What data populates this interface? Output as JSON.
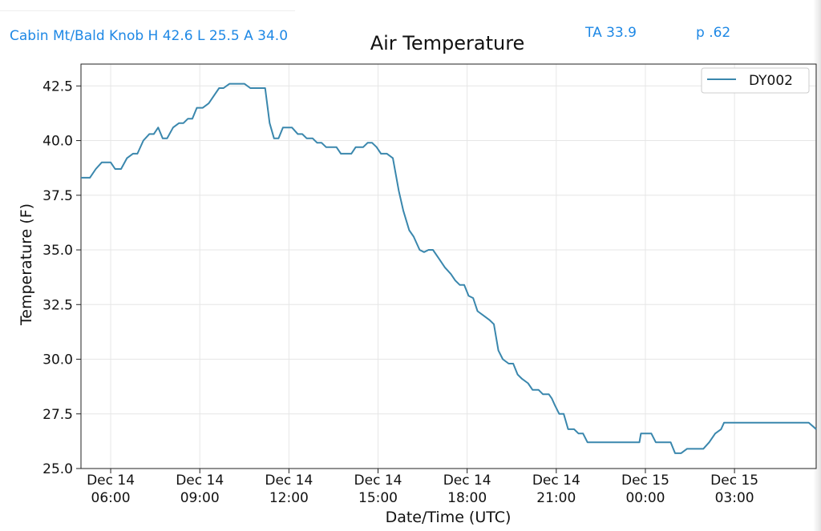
{
  "header": {
    "station_summary": "Cabin Mt/Bald Knob H 42.6 L 25.5 A 34.0",
    "ta_label": "TA 33.9",
    "p_label": "p .62"
  },
  "colors": {
    "accent_text": "#1e88e5",
    "series_line": "#3a87ad",
    "grid": "#e6e6e6"
  },
  "chart_data": {
    "type": "line",
    "title": "Air Temperature",
    "xlabel": "Date/Time (UTC)",
    "ylabel": "Temperature (F)",
    "ylim": [
      25.0,
      43.5
    ],
    "y_ticks": [
      "25.0",
      "27.5",
      "30.0",
      "32.5",
      "35.0",
      "37.5",
      "40.0",
      "42.5"
    ],
    "x_range_hours": [
      5.0,
      29.75
    ],
    "x_ticks": [
      {
        "hour": 6,
        "line1": "Dec 14",
        "line2": "06:00"
      },
      {
        "hour": 9,
        "line1": "Dec 14",
        "line2": "09:00"
      },
      {
        "hour": 12,
        "line1": "Dec 14",
        "line2": "12:00"
      },
      {
        "hour": 15,
        "line1": "Dec 14",
        "line2": "15:00"
      },
      {
        "hour": 18,
        "line1": "Dec 14",
        "line2": "18:00"
      },
      {
        "hour": 21,
        "line1": "Dec 14",
        "line2": "21:00"
      },
      {
        "hour": 24,
        "line1": "Dec 15",
        "line2": "00:00"
      },
      {
        "hour": 27,
        "line1": "Dec 15",
        "line2": "03:00"
      }
    ],
    "grid": true,
    "legend_position": "top-right",
    "series": [
      {
        "name": "DY002",
        "points": [
          [
            5.0,
            38.3
          ],
          [
            5.3,
            38.3
          ],
          [
            5.5,
            38.7
          ],
          [
            5.7,
            39.0
          ],
          [
            6.0,
            39.0
          ],
          [
            6.15,
            38.7
          ],
          [
            6.35,
            38.7
          ],
          [
            6.55,
            39.2
          ],
          [
            6.75,
            39.4
          ],
          [
            6.9,
            39.4
          ],
          [
            7.1,
            40.0
          ],
          [
            7.3,
            40.3
          ],
          [
            7.45,
            40.3
          ],
          [
            7.6,
            40.6
          ],
          [
            7.75,
            40.1
          ],
          [
            7.9,
            40.1
          ],
          [
            8.1,
            40.6
          ],
          [
            8.3,
            40.8
          ],
          [
            8.45,
            40.8
          ],
          [
            8.6,
            41.0
          ],
          [
            8.75,
            41.0
          ],
          [
            8.9,
            41.5
          ],
          [
            9.1,
            41.5
          ],
          [
            9.3,
            41.7
          ],
          [
            9.5,
            42.1
          ],
          [
            9.65,
            42.4
          ],
          [
            9.8,
            42.4
          ],
          [
            10.0,
            42.6
          ],
          [
            10.2,
            42.6
          ],
          [
            10.5,
            42.6
          ],
          [
            10.7,
            42.4
          ],
          [
            11.0,
            42.4
          ],
          [
            11.2,
            42.4
          ],
          [
            11.35,
            40.8
          ],
          [
            11.5,
            40.1
          ],
          [
            11.65,
            40.1
          ],
          [
            11.8,
            40.6
          ],
          [
            12.1,
            40.6
          ],
          [
            12.3,
            40.3
          ],
          [
            12.45,
            40.3
          ],
          [
            12.6,
            40.1
          ],
          [
            12.8,
            40.1
          ],
          [
            12.95,
            39.9
          ],
          [
            13.1,
            39.9
          ],
          [
            13.25,
            39.7
          ],
          [
            13.5,
            39.7
          ],
          [
            13.6,
            39.7
          ],
          [
            13.75,
            39.4
          ],
          [
            13.9,
            39.4
          ],
          [
            14.1,
            39.4
          ],
          [
            14.25,
            39.7
          ],
          [
            14.5,
            39.7
          ],
          [
            14.65,
            39.9
          ],
          [
            14.8,
            39.9
          ],
          [
            14.95,
            39.7
          ],
          [
            15.1,
            39.4
          ],
          [
            15.3,
            39.4
          ],
          [
            15.5,
            39.2
          ],
          [
            15.7,
            37.7
          ],
          [
            15.85,
            36.8
          ],
          [
            16.05,
            35.9
          ],
          [
            16.2,
            35.6
          ],
          [
            16.4,
            35.0
          ],
          [
            16.55,
            34.9
          ],
          [
            16.7,
            35.0
          ],
          [
            16.85,
            35.0
          ],
          [
            17.05,
            34.6
          ],
          [
            17.25,
            34.2
          ],
          [
            17.45,
            33.9
          ],
          [
            17.6,
            33.6
          ],
          [
            17.75,
            33.4
          ],
          [
            17.9,
            33.4
          ],
          [
            18.05,
            32.9
          ],
          [
            18.2,
            32.8
          ],
          [
            18.35,
            32.2
          ],
          [
            18.55,
            32.0
          ],
          [
            18.75,
            31.8
          ],
          [
            18.9,
            31.6
          ],
          [
            19.05,
            30.4
          ],
          [
            19.2,
            30.0
          ],
          [
            19.4,
            29.8
          ],
          [
            19.55,
            29.8
          ],
          [
            19.7,
            29.3
          ],
          [
            19.85,
            29.1
          ],
          [
            20.05,
            28.9
          ],
          [
            20.2,
            28.6
          ],
          [
            20.4,
            28.6
          ],
          [
            20.55,
            28.4
          ],
          [
            20.75,
            28.4
          ],
          [
            20.85,
            28.2
          ],
          [
            20.95,
            27.9
          ],
          [
            21.1,
            27.5
          ],
          [
            21.25,
            27.5
          ],
          [
            21.4,
            26.8
          ],
          [
            21.6,
            26.8
          ],
          [
            21.75,
            26.6
          ],
          [
            21.9,
            26.6
          ],
          [
            22.05,
            26.2
          ],
          [
            22.3,
            26.2
          ],
          [
            22.6,
            26.2
          ],
          [
            23.0,
            26.2
          ],
          [
            23.4,
            26.2
          ],
          [
            23.8,
            26.2
          ],
          [
            23.85,
            26.6
          ],
          [
            24.2,
            26.6
          ],
          [
            24.35,
            26.2
          ],
          [
            24.65,
            26.2
          ],
          [
            24.85,
            26.2
          ],
          [
            25.0,
            25.7
          ],
          [
            25.2,
            25.7
          ],
          [
            25.4,
            25.9
          ],
          [
            25.6,
            25.9
          ],
          [
            25.8,
            25.9
          ],
          [
            25.95,
            25.9
          ],
          [
            26.15,
            26.2
          ],
          [
            26.35,
            26.6
          ],
          [
            26.55,
            26.8
          ],
          [
            26.65,
            27.1
          ],
          [
            27.0,
            27.1
          ],
          [
            27.5,
            27.1
          ],
          [
            28.0,
            27.1
          ],
          [
            28.5,
            27.1
          ],
          [
            29.0,
            27.1
          ],
          [
            29.5,
            27.1
          ],
          [
            29.75,
            26.8
          ]
        ]
      }
    ]
  }
}
